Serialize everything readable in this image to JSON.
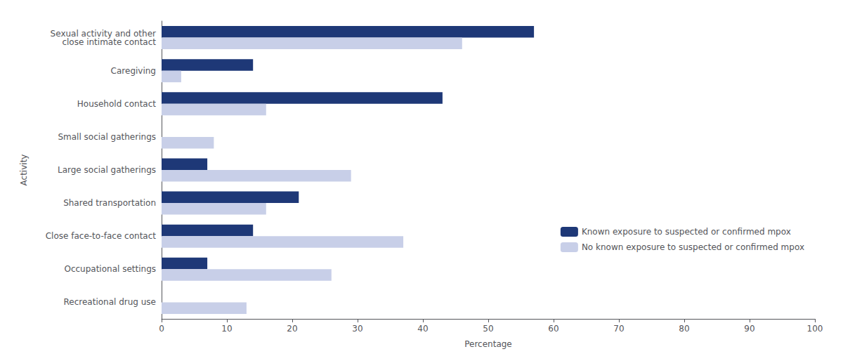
{
  "chart_data": {
    "type": "bar",
    "orientation": "horizontal",
    "categories": [
      "Sexual activity and other\nclose intimate contact",
      "Caregiving",
      "Household contact",
      "Small social gatherings",
      "Large social gatherings",
      "Shared transportation",
      "Close face-to-face contact",
      "Occupational settings",
      "Recreational drug use"
    ],
    "series": [
      {
        "name": "Known exposure to suspected or confirmed mpox",
        "color": "#1e3877",
        "values": [
          57,
          14,
          43,
          0,
          7,
          21,
          14,
          7,
          0
        ]
      },
      {
        "name": "No known exposure to suspected or confirmed mpox",
        "color": "#c8cfe8",
        "values": [
          46,
          3,
          16,
          8,
          29,
          16,
          37,
          26,
          13
        ]
      }
    ],
    "xlabel": "Percentage",
    "ylabel": "Activity",
    "xlim": [
      0,
      100
    ],
    "xticks": [
      0,
      10,
      20,
      30,
      40,
      50,
      60,
      70,
      80,
      90,
      100
    ],
    "grid": false,
    "legend": "lower right"
  }
}
